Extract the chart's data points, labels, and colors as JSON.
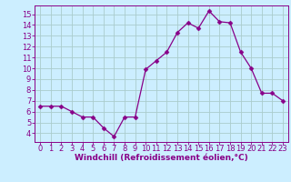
{
  "x": [
    0,
    1,
    2,
    3,
    4,
    5,
    6,
    7,
    8,
    9,
    10,
    11,
    12,
    13,
    14,
    15,
    16,
    17,
    18,
    19,
    20,
    21,
    22,
    23
  ],
  "y": [
    6.5,
    6.5,
    6.5,
    6.0,
    5.5,
    5.5,
    4.5,
    3.7,
    5.5,
    5.5,
    9.9,
    10.7,
    11.5,
    13.3,
    14.2,
    13.7,
    15.3,
    14.3,
    14.2,
    11.5,
    10.0,
    7.7,
    7.7,
    7.0
  ],
  "line_color": "#880088",
  "marker_color": "#880088",
  "bg_color": "#cceeff",
  "grid_color": "#aacccc",
  "xlabel": "Windchill (Refroidissement éolien,°C)",
  "xlabel_color": "#880088",
  "xlabel_fontsize": 6.5,
  "tick_color": "#880088",
  "tick_fontsize": 6.0,
  "ylim": [
    3.2,
    15.8
  ],
  "xlim": [
    -0.5,
    23.5
  ],
  "yticks": [
    4,
    5,
    6,
    7,
    8,
    9,
    10,
    11,
    12,
    13,
    14,
    15
  ],
  "xticks": [
    0,
    1,
    2,
    3,
    4,
    5,
    6,
    7,
    8,
    9,
    10,
    11,
    12,
    13,
    14,
    15,
    16,
    17,
    18,
    19,
    20,
    21,
    22,
    23
  ]
}
